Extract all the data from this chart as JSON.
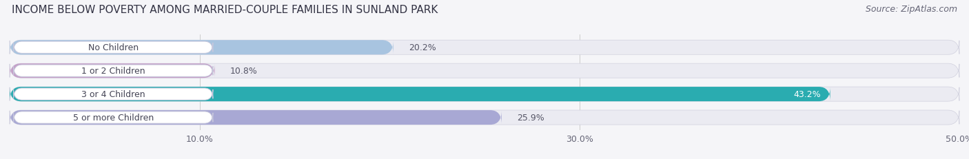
{
  "title": "INCOME BELOW POVERTY AMONG MARRIED-COUPLE FAMILIES IN SUNLAND PARK",
  "source": "Source: ZipAtlas.com",
  "categories": [
    "No Children",
    "1 or 2 Children",
    "3 or 4 Children",
    "5 or more Children"
  ],
  "values": [
    20.2,
    10.8,
    43.2,
    25.9
  ],
  "bar_colors": [
    "#a8c4e0",
    "#c4a0c8",
    "#2aacb0",
    "#a8a8d4"
  ],
  "bar_bg_color": "#ebebf2",
  "xlim": [
    0,
    50
  ],
  "xticks": [
    10.0,
    30.0,
    50.0
  ],
  "xtick_labels": [
    "10.0%",
    "30.0%",
    "50.0%"
  ],
  "label_color_inside": "#ffffff",
  "label_color_outside": "#555566",
  "title_fontsize": 11,
  "source_fontsize": 9,
  "tick_fontsize": 9,
  "bar_label_fontsize": 9,
  "category_fontsize": 9,
  "bar_height": 0.62,
  "bar_gap": 1.0,
  "background_color": "#f5f5f8"
}
